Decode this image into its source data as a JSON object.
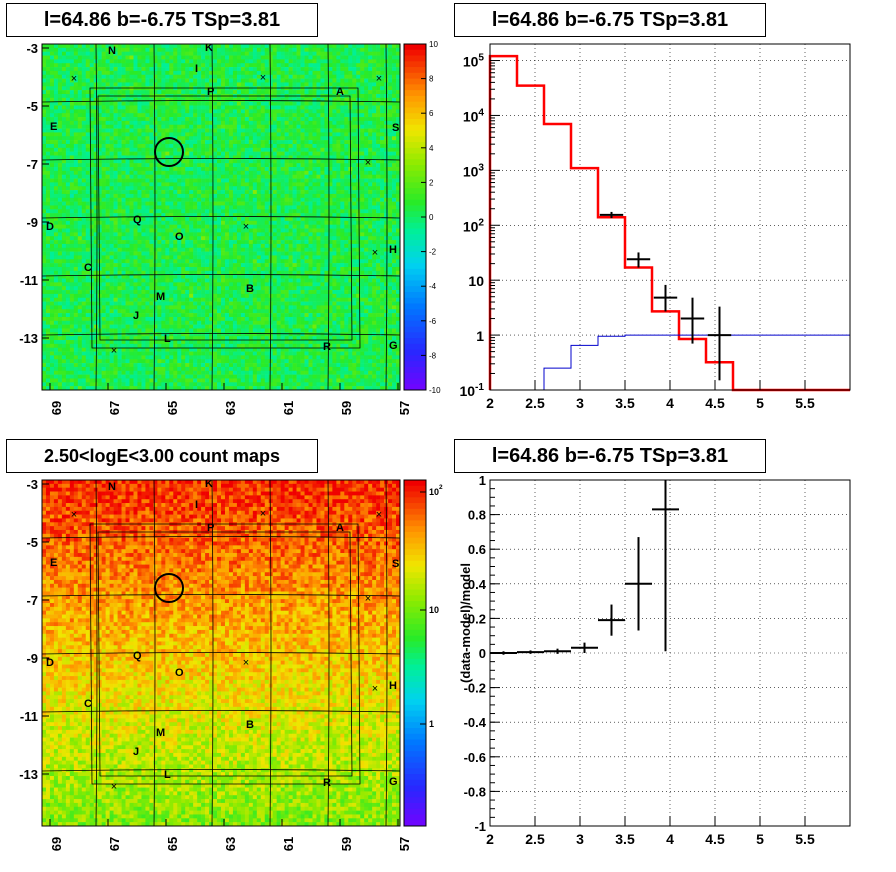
{
  "chart_data": [
    {
      "type": "heatmap",
      "title": "l=64.86 b=-6.75 TSp=3.81",
      "x_ticks": [
        "69",
        "67",
        "65",
        "63",
        "61",
        "59",
        "57"
      ],
      "y_ticks": [
        "-3",
        "-5",
        "-7",
        "-9",
        "-11",
        "-13"
      ],
      "colorbar_ticks": [
        "10",
        "8",
        "6",
        "4",
        "2",
        "0",
        "-2",
        "-4",
        "-6",
        "-8",
        "-10"
      ],
      "zlim": [
        -10,
        10
      ],
      "background_color": "#33ee33",
      "source_labels": [
        "N",
        "K",
        "I",
        "P",
        "A",
        "E",
        "S",
        "Q",
        "O",
        "H",
        "C",
        "B",
        "M",
        "J",
        "L",
        "R",
        "G",
        "D"
      ]
    },
    {
      "type": "line",
      "title": "l=64.86 b=-6.75 TSp=3.81",
      "log_y": true,
      "xlim": [
        2,
        6
      ],
      "ylim": [
        0.1,
        200000
      ],
      "x_ticks": [
        "2",
        "2.5",
        "3",
        "3.5",
        "4",
        "4.5",
        "5",
        "5.5"
      ],
      "y_ticks": [
        "10^5",
        "10^4",
        "10^3",
        "10^2",
        "10",
        "1",
        "10^-1"
      ],
      "grid": true,
      "series": [
        {
          "color": "#ff0000",
          "x": [
            2.0,
            2.3,
            2.6,
            2.9,
            3.2,
            3.5,
            3.8,
            4.1,
            4.4,
            4.7
          ],
          "values": [
            120000,
            35000,
            7000,
            1100,
            140,
            17,
            2.7,
            0.85,
            0.32,
            0.1
          ]
        },
        {
          "color": "#0000cc",
          "x": [
            2.6,
            2.9,
            3.2,
            3.5,
            3.8,
            4.1,
            4.4,
            4.7,
            5.0
          ],
          "values": [
            0.25,
            0.65,
            0.95,
            1.0,
            1.0,
            1.0,
            1.0,
            1.0,
            1.0
          ]
        },
        {
          "color": "#000000",
          "x": [
            3.35,
            3.65,
            3.95,
            4.25,
            4.55
          ],
          "values": [
            155,
            24,
            4.8,
            2.0,
            1.0
          ],
          "yerr_low": [
            135,
            17,
            2.7,
            0.7,
            0.15
          ],
          "yerr_high": [
            175,
            32,
            8.2,
            4.8,
            3.3
          ]
        }
      ]
    },
    {
      "type": "heatmap",
      "title": "2.50<logE<3.00 count maps",
      "x_ticks": [
        "69",
        "67",
        "65",
        "63",
        "61",
        "59",
        "57"
      ],
      "y_ticks": [
        "-3",
        "-5",
        "-7",
        "-9",
        "-11",
        "-13"
      ],
      "colorbar_ticks": [
        "10^2",
        "10",
        "1"
      ],
      "log_z": true,
      "source_labels": [
        "N",
        "K",
        "I",
        "P",
        "A",
        "E",
        "S",
        "Q",
        "O",
        "H",
        "C",
        "B",
        "M",
        "J",
        "L",
        "R",
        "G",
        "D"
      ]
    },
    {
      "type": "scatter",
      "title": "l=64.86 b=-6.75 TSp=3.81",
      "ylabel": "(data-model)/model",
      "xlim": [
        2,
        6
      ],
      "ylim": [
        -1,
        1
      ],
      "x_ticks": [
        "2",
        "2.5",
        "3",
        "3.5",
        "4",
        "4.5",
        "5",
        "5.5"
      ],
      "y_ticks": [
        "1",
        "0.8",
        "0.6",
        "0.4",
        "0.2",
        "0",
        "-0.2",
        "-0.4",
        "-0.6",
        "-0.8",
        "-1"
      ],
      "grid": true,
      "x": [
        2.15,
        2.45,
        2.75,
        3.05,
        3.35,
        3.65,
        3.95
      ],
      "values": [
        0.0,
        0.005,
        0.01,
        0.03,
        0.19,
        0.4,
        0.83
      ],
      "yerr": [
        0.01,
        0.01,
        0.015,
        0.03,
        0.09,
        0.27,
        0.82
      ]
    }
  ]
}
